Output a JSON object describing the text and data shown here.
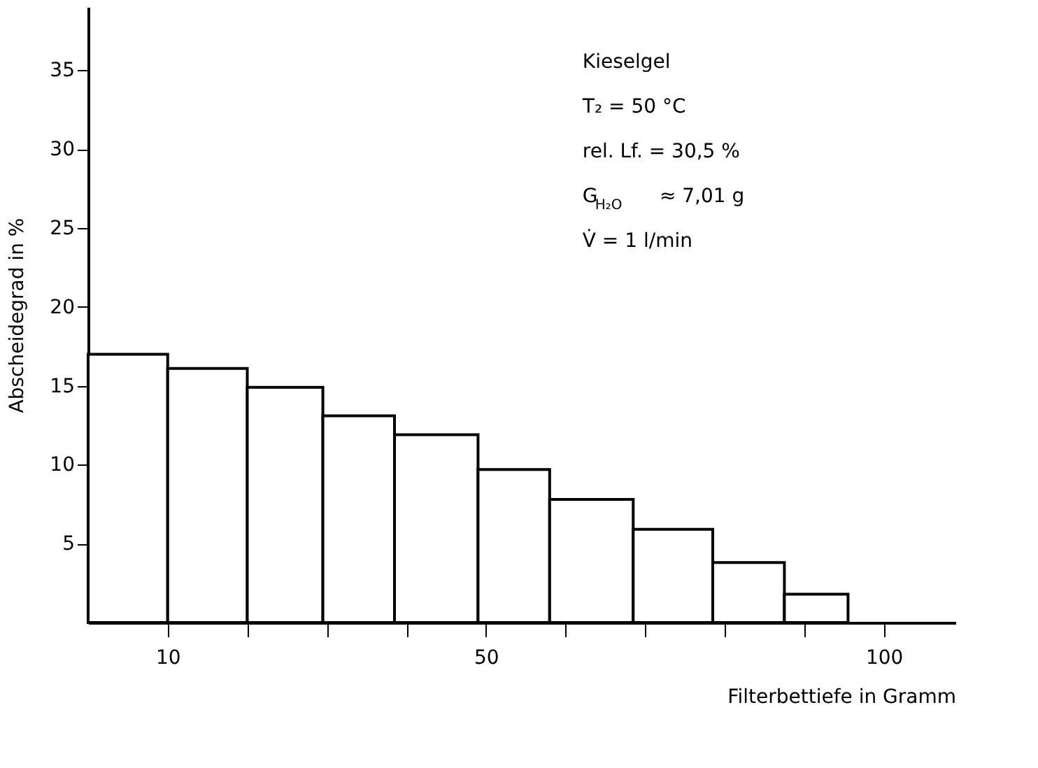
{
  "chart_data": {
    "type": "histogram",
    "xlabel": "Filterbettiefe in Gramm",
    "ylabel": "Abscheidegrad  in  %",
    "bins": [
      0,
      10,
      20,
      29.5,
      38.5,
      49,
      58,
      68.5,
      78.5,
      87.5,
      95.5
    ],
    "values": [
      17.0,
      16.1,
      14.9,
      13.1,
      11.9,
      9.7,
      7.8,
      5.9,
      3.8,
      1.8
    ],
    "color": "#ffffff",
    "xlim": [
      0,
      109
    ],
    "ylim": [
      0,
      39
    ],
    "xticks": [
      10,
      {
        "value": 20,
        "label": null
      },
      {
        "value": 30,
        "label": null
      },
      {
        "value": 40,
        "label": null
      },
      50,
      {
        "value": 60,
        "label": null
      },
      {
        "value": 70,
        "label": null
      },
      {
        "value": 80,
        "label": null
      },
      {
        "value": 90,
        "label": null
      },
      100
    ],
    "yticks": [
      5,
      10,
      15,
      20,
      25,
      30,
      35
    ],
    "grid": false,
    "annotations": [
      "Kieselgel",
      "T₂          = 50 °C",
      "rel. Lf.    = 30,5 %",
      "G$_{H₂O}$      ≈ 7,01 g",
      "V̇            = 1 l/min"
    ]
  }
}
